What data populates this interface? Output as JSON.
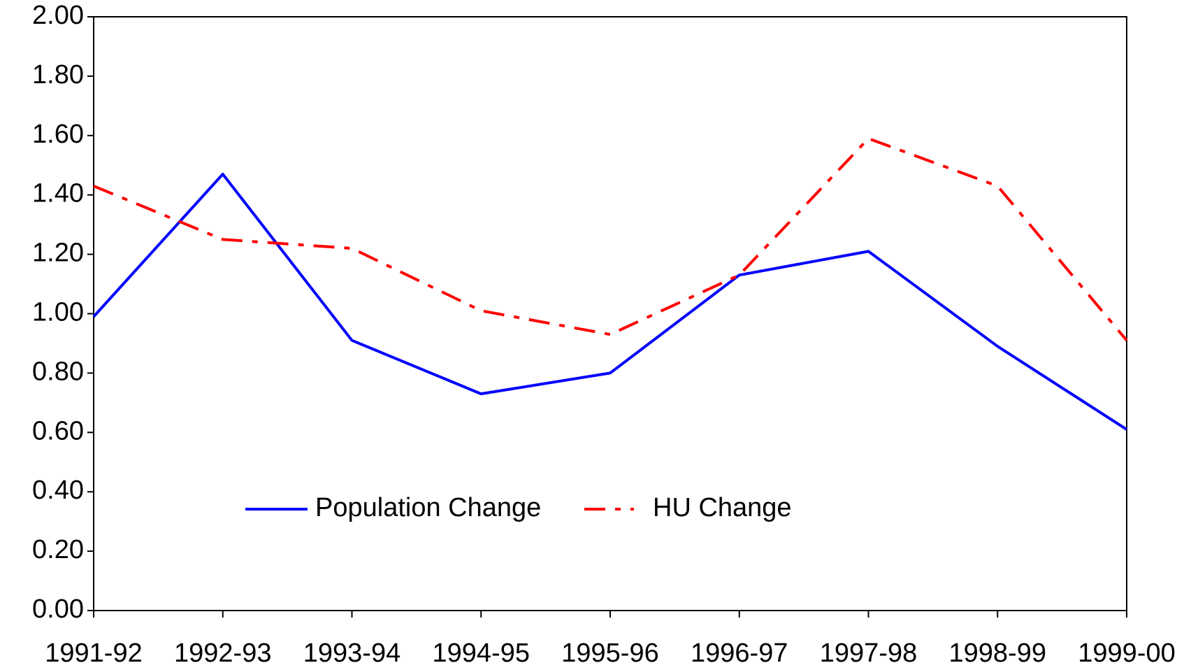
{
  "chart_data": {
    "type": "line",
    "categories": [
      "1991-92",
      "1992-93",
      "1993-94",
      "1994-95",
      "1995-96",
      "1996-97",
      "1997-98",
      "1998-99",
      "1999-00"
    ],
    "series": [
      {
        "name": "Population Change",
        "color": "#0000ff",
        "values": [
          0.99,
          1.47,
          0.91,
          0.73,
          0.8,
          1.13,
          1.21,
          0.89,
          0.61
        ]
      },
      {
        "name": "HU Change",
        "color": "#ff0000",
        "values": [
          1.43,
          1.25,
          1.22,
          1.01,
          0.93,
          1.13,
          1.59,
          1.43,
          0.91
        ]
      }
    ],
    "ylim": [
      0,
      2
    ],
    "yticks": [
      {
        "value": 0,
        "label": "0.00"
      },
      {
        "value": 0.2,
        "label": "0.20"
      },
      {
        "value": 0.4,
        "label": "0.40"
      },
      {
        "value": 0.6,
        "label": "0.60"
      },
      {
        "value": 0.8,
        "label": "0.80"
      },
      {
        "value": 1,
        "label": "1.00"
      },
      {
        "value": 1.2,
        "label": "1.20"
      },
      {
        "value": 1.4,
        "label": "1.40"
      },
      {
        "value": 1.6,
        "label": "1.60"
      },
      {
        "value": 1.8,
        "label": "1.80"
      },
      {
        "value": 2,
        "label": "2.00"
      }
    ],
    "grid": false
  }
}
